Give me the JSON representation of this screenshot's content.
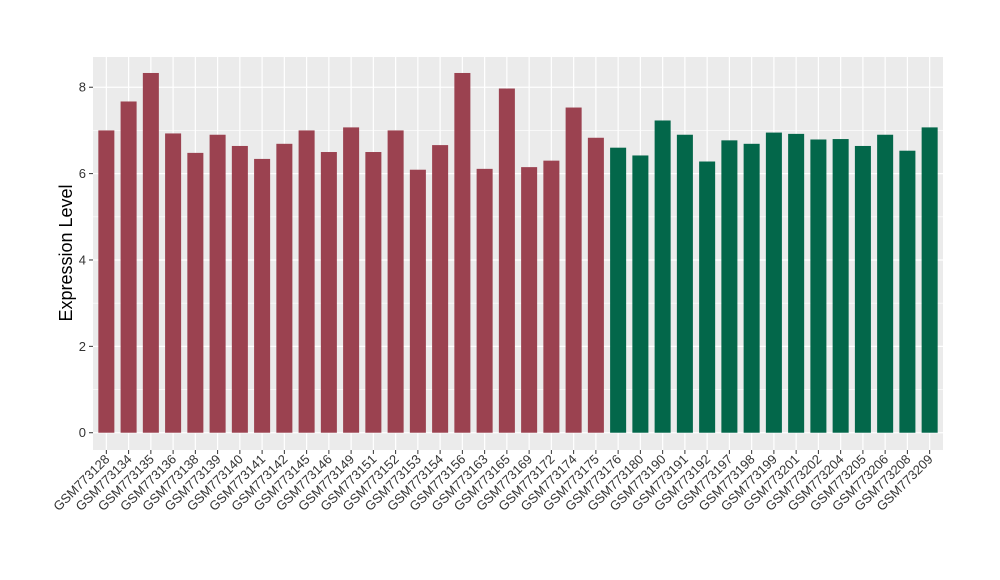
{
  "chart_data": {
    "type": "bar",
    "ylabel": "Expression Level",
    "xlabel": "",
    "ylim": [
      -0.4,
      8.7
    ],
    "yticks": [
      0,
      2,
      4,
      6,
      8
    ],
    "grid": true,
    "panel_background": "#ebebeb",
    "gridline_color": "#ffffff",
    "group_colors": [
      "#9b4250",
      "#03674a"
    ],
    "categories": [
      "GSM773128",
      "GSM773134",
      "GSM773135",
      "GSM773136",
      "GSM773138",
      "GSM773139",
      "GSM773140",
      "GSM773141",
      "GSM773142",
      "GSM773145",
      "GSM773146",
      "GSM773149",
      "GSM773151",
      "GSM773152",
      "GSM773153",
      "GSM773154",
      "GSM773156",
      "GSM773163",
      "GSM773165",
      "GSM773169",
      "GSM773172",
      "GSM773174",
      "GSM773175",
      "GSM773176",
      "GSM773180",
      "GSM773190",
      "GSM773191",
      "GSM773192",
      "GSM773197",
      "GSM773198",
      "GSM773199",
      "GSM773201",
      "GSM773202",
      "GSM773204",
      "GSM773205",
      "GSM773206",
      "GSM773208",
      "GSM773209"
    ],
    "values": [
      7.0,
      7.67,
      8.33,
      6.93,
      6.48,
      6.9,
      6.64,
      6.34,
      6.69,
      7.0,
      6.5,
      7.07,
      6.5,
      7.0,
      6.09,
      6.66,
      8.33,
      6.11,
      7.97,
      6.15,
      6.3,
      7.53,
      6.83,
      6.6,
      6.42,
      7.23,
      6.9,
      6.28,
      6.77,
      6.69,
      6.95,
      6.92,
      6.79,
      6.8,
      6.64,
      6.9,
      6.53,
      7.07
    ],
    "groups": [
      0,
      0,
      0,
      0,
      0,
      0,
      0,
      0,
      0,
      0,
      0,
      0,
      0,
      0,
      0,
      0,
      0,
      0,
      0,
      0,
      0,
      0,
      0,
      1,
      1,
      1,
      1,
      1,
      1,
      1,
      1,
      1,
      1,
      1,
      1,
      1,
      1,
      1
    ]
  }
}
